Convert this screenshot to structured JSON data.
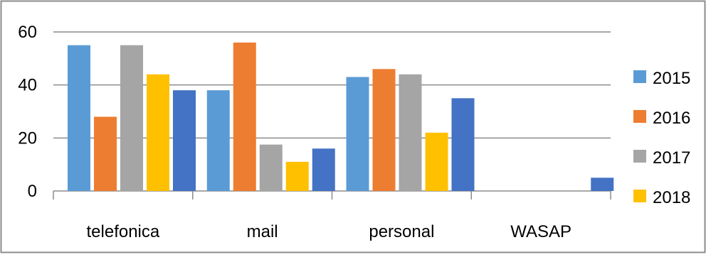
{
  "chart_data": {
    "type": "bar",
    "title": "",
    "xlabel": "",
    "ylabel": "",
    "categories": [
      "telefonica",
      "mail",
      "personal",
      "WASAP"
    ],
    "ylim": [
      0,
      60
    ],
    "yticks": [
      "0",
      "20",
      "40",
      "60"
    ],
    "grid": true,
    "legend_position": "right",
    "series": [
      {
        "name": "2015",
        "color": "#5b9bd5",
        "values": [
          55,
          38,
          43,
          0
        ]
      },
      {
        "name": "2016",
        "color": "#ed7d31",
        "values": [
          28,
          56,
          46,
          0
        ]
      },
      {
        "name": "2017",
        "color": "#a5a5a5",
        "values": [
          55,
          17.5,
          44,
          0
        ]
      },
      {
        "name": "2018",
        "color": "#ffc000",
        "values": [
          44,
          11,
          22,
          0
        ]
      },
      {
        "name": "",
        "color": "#4472c4",
        "values": [
          38,
          16,
          35,
          5
        ]
      }
    ]
  }
}
